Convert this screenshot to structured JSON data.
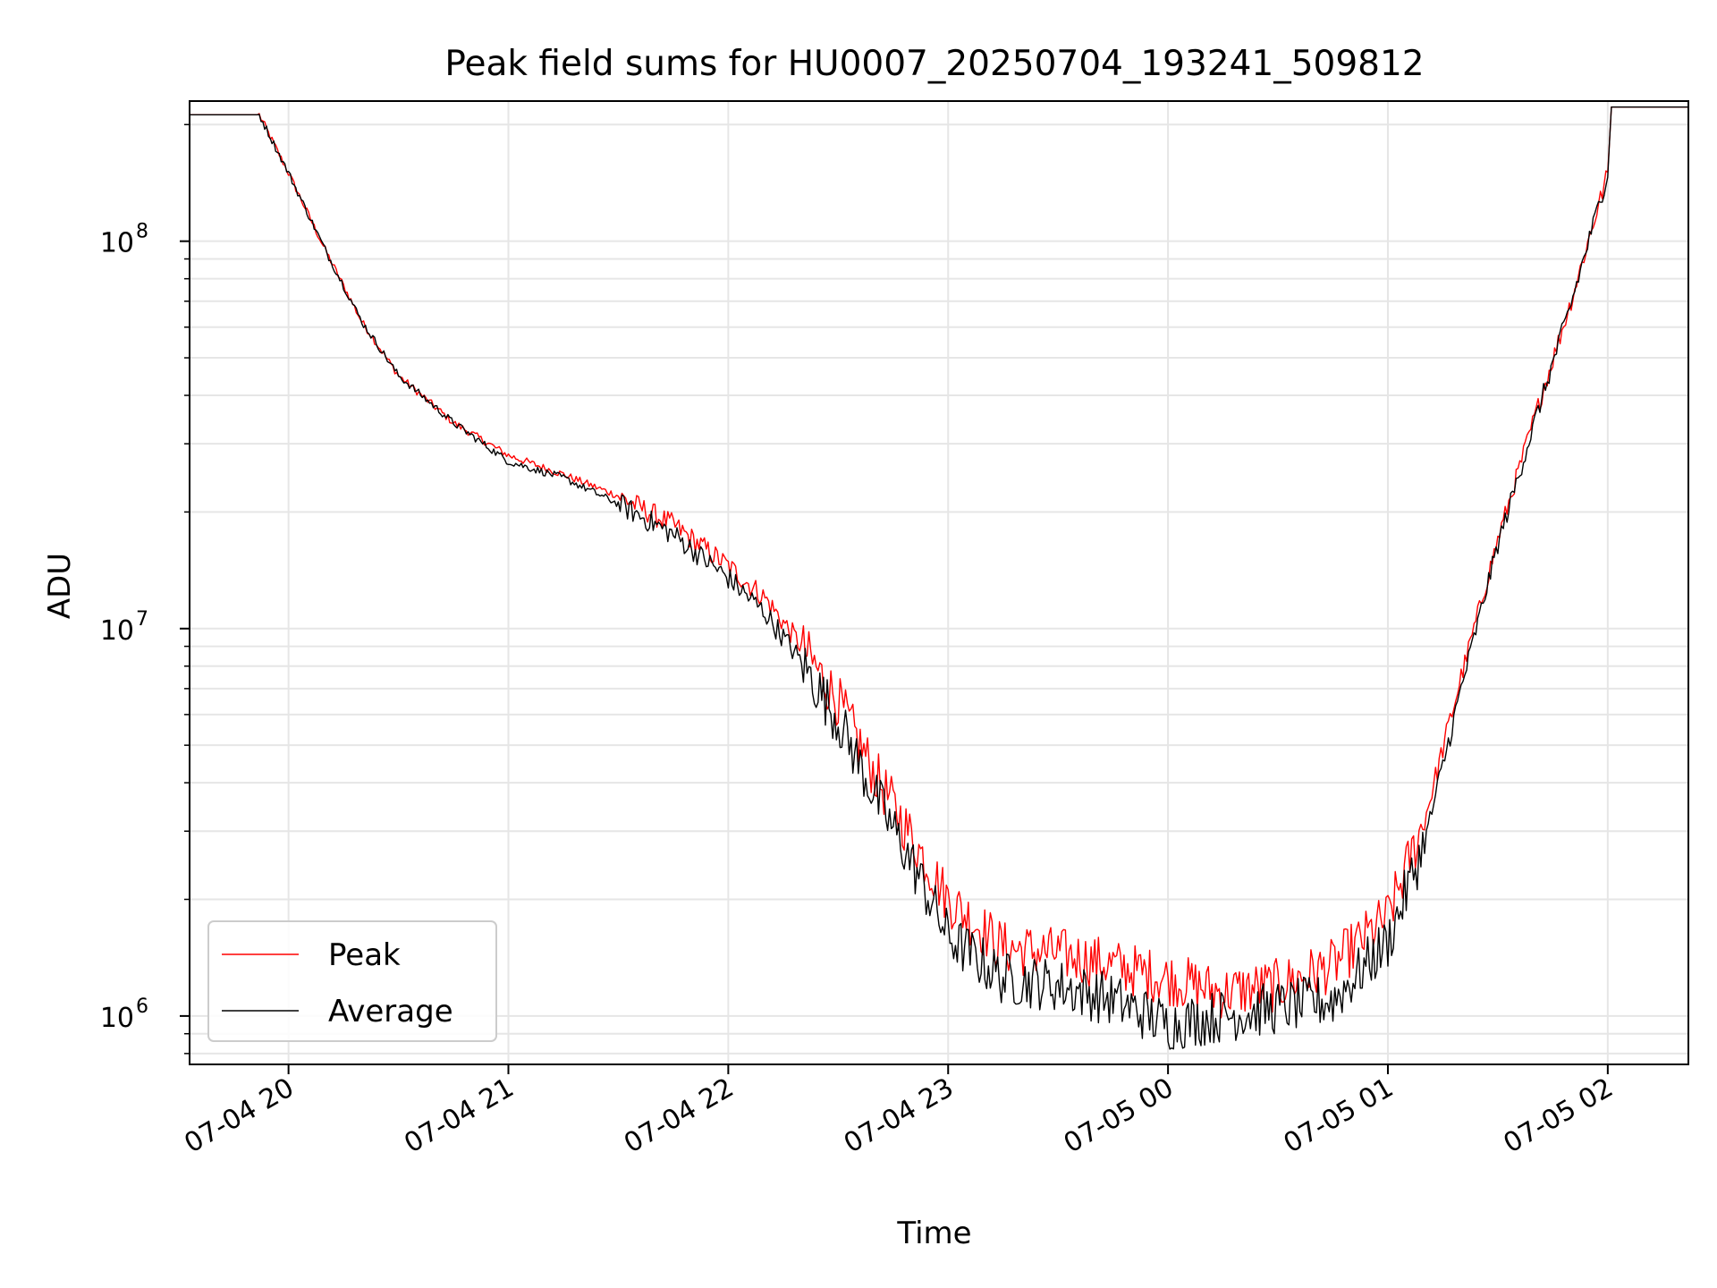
{
  "chart_data": {
    "type": "line",
    "title": "Peak field sums for HU0007_20250704_193241_509812",
    "xlabel": "Time",
    "ylabel": "ADU",
    "yscale": "log",
    "ylim": [
      750000,
      230000000
    ],
    "xlim": [
      "07-04 19:33",
      "07-05 02:22"
    ],
    "x_ticks": [
      "07-04 20",
      "07-04 21",
      "07-04 22",
      "07-04 23",
      "07-05 00",
      "07-05 01",
      "07-05 02"
    ],
    "y_ticks": [
      {
        "base": "10",
        "exp": "6",
        "value": 1000000
      },
      {
        "base": "10",
        "exp": "7",
        "value": 10000000
      },
      {
        "base": "10",
        "exp": "8",
        "value": 100000000
      }
    ],
    "grid": true,
    "legend": {
      "position": "lower-left"
    },
    "series": [
      {
        "name": "Peak",
        "color": "#ff0000",
        "x": [
          "07-04 19:33",
          "07-04 19:52",
          "07-04 20:00",
          "07-04 20:10",
          "07-04 20:20",
          "07-04 20:30",
          "07-04 20:45",
          "07-04 21:00",
          "07-04 21:15",
          "07-04 21:30",
          "07-04 21:45",
          "07-04 22:00",
          "07-04 22:10",
          "07-04 22:20",
          "07-04 22:30",
          "07-04 22:40",
          "07-04 22:50",
          "07-04 23:00",
          "07-04 23:15",
          "07-04 23:30",
          "07-04 23:45",
          "07-05 00:00",
          "07-05 00:15",
          "07-05 00:30",
          "07-05 00:45",
          "07-05 01:00",
          "07-05 01:10",
          "07-05 01:20",
          "07-05 01:30",
          "07-05 01:40",
          "07-05 01:50",
          "07-05 02:00",
          "07-05 02:01",
          "07-05 02:22"
        ],
        "y": [
          212000000,
          212000000,
          150000000,
          95000000,
          62000000,
          45000000,
          34000000,
          28000000,
          25000000,
          22000000,
          18500000,
          14500000,
          12000000,
          9000000,
          6500000,
          4200000,
          2900000,
          2000000,
          1500000,
          1450000,
          1350000,
          1250000,
          1150000,
          1200000,
          1350000,
          1800000,
          3200000,
          7500000,
          17000000,
          35000000,
          70000000,
          150000000,
          222000000,
          222000000
        ]
      },
      {
        "name": "Average",
        "color": "#000000",
        "x": [
          "07-04 19:33",
          "07-04 19:52",
          "07-04 20:00",
          "07-04 20:10",
          "07-04 20:20",
          "07-04 20:30",
          "07-04 20:45",
          "07-04 21:00",
          "07-04 21:15",
          "07-04 21:30",
          "07-04 21:45",
          "07-04 22:00",
          "07-04 22:10",
          "07-04 22:20",
          "07-04 22:30",
          "07-04 22:40",
          "07-04 22:50",
          "07-04 23:00",
          "07-04 23:15",
          "07-04 23:30",
          "07-04 23:45",
          "07-05 00:00",
          "07-05 00:15",
          "07-05 00:30",
          "07-05 00:45",
          "07-05 01:00",
          "07-05 01:10",
          "07-05 01:20",
          "07-05 01:30",
          "07-05 01:40",
          "07-05 01:50",
          "07-05 02:00",
          "07-05 02:01",
          "07-05 02:22"
        ],
        "y": [
          212000000,
          212000000,
          150000000,
          95000000,
          62000000,
          45000000,
          34000000,
          27000000,
          24500000,
          21000000,
          17500000,
          13500000,
          11000000,
          8200000,
          5800000,
          3700000,
          2500000,
          1600000,
          1250000,
          1200000,
          1100000,
          950000,
          1000000,
          1050000,
          1100000,
          1550000,
          2800000,
          7000000,
          16500000,
          34000000,
          69000000,
          150000000,
          222000000,
          222000000
        ]
      }
    ]
  }
}
